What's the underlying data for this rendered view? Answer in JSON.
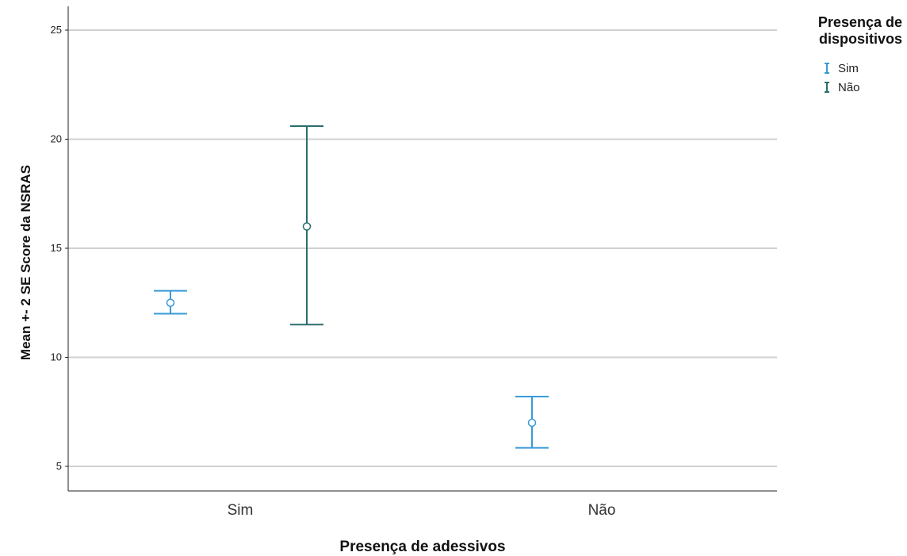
{
  "chart_data": {
    "type": "errorbar",
    "xlabel": "Presença de adessivos",
    "ylabel": "Mean +- 2 SE Score da NSRAS",
    "categories": [
      "Sim",
      "Não"
    ],
    "ylim": [
      4,
      26
    ],
    "yticks": [
      5,
      10,
      15,
      20,
      25
    ],
    "grid": true,
    "legend": {
      "title_lines": [
        "Presença de",
        "dispositivos"
      ],
      "placement": "right",
      "entries": [
        "Sim",
        "Não"
      ]
    },
    "series": [
      {
        "name": "Sim",
        "color": "#3a9ad9",
        "points": [
          {
            "category": "Sim",
            "mean": 12.5,
            "lower": 12.0,
            "upper": 13.05
          },
          {
            "category": "Não",
            "mean": 7.0,
            "lower": 5.85,
            "upper": 8.2
          }
        ]
      },
      {
        "name": "Não",
        "color": "#2a6e6e",
        "points": [
          {
            "category": "Sim",
            "mean": 16.0,
            "lower": 11.5,
            "upper": 20.6
          }
        ]
      }
    ]
  }
}
